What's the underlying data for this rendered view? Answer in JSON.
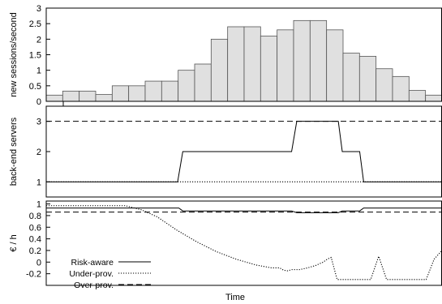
{
  "chart_data": [
    {
      "type": "bar",
      "name": "sessions-panel",
      "ylabel": "new sessions/second",
      "ylim": [
        0,
        3
      ],
      "yticks": [
        0,
        0.5,
        1,
        1.5,
        2,
        2.5,
        3
      ],
      "ytick_labels": [
        "0",
        "0.5",
        "1",
        "1.5",
        "2",
        "2.5",
        "3"
      ],
      "values": [
        0.2,
        0.33,
        0.33,
        0.22,
        0.5,
        0.5,
        0.65,
        0.65,
        1.0,
        1.2,
        2.0,
        2.4,
        2.4,
        2.1,
        2.3,
        2.6,
        2.6,
        2.3,
        1.55,
        1.45,
        1.05,
        0.8,
        0.35,
        0.2
      ],
      "bar_color": "#e0e0e0",
      "grid": false
    },
    {
      "type": "line",
      "name": "servers-panel",
      "ylabel": "back-end servers",
      "ylim": [
        0.5,
        3.5
      ],
      "yticks": [
        1,
        2,
        3
      ],
      "ytick_labels": [
        "1",
        "2",
        "3"
      ],
      "series": [
        {
          "name": "",
          "style": "solid",
          "x": [
            0,
            0.332,
            0.345,
            0.62,
            0.633,
            0.738,
            0.748,
            0.792,
            0.802,
            1.0
          ],
          "y": [
            1,
            1,
            2,
            2,
            3,
            3,
            2,
            2,
            1,
            1
          ]
        },
        {
          "name": "",
          "style": "dotted",
          "x": [
            0,
            1.0
          ],
          "y": [
            1,
            1
          ]
        },
        {
          "name": "",
          "style": "dashed",
          "x": [
            0,
            1.0
          ],
          "y": [
            3,
            3
          ]
        }
      ],
      "grid": false
    },
    {
      "type": "line",
      "name": "cost-panel",
      "ylabel": "€ / h",
      "xlabel": "Time",
      "ylim": [
        -0.4,
        1.05
      ],
      "yticks": [
        -0.2,
        0,
        0.2,
        0.4,
        0.6,
        0.8,
        1
      ],
      "ytick_labels": [
        "-0.2",
        "0",
        "0.2",
        "0.4",
        "0.6",
        "0.8",
        "1"
      ],
      "series": [
        {
          "name": "Risk-aware",
          "style": "solid",
          "x": [
            0,
            0.335,
            0.345,
            0.62,
            0.633,
            0.738,
            0.748,
            0.792,
            0.802,
            1.0
          ],
          "y": [
            0.93,
            0.93,
            0.88,
            0.88,
            0.85,
            0.85,
            0.88,
            0.88,
            0.93,
            0.93
          ]
        },
        {
          "name": "Under-prov.",
          "style": "dotted",
          "x": [
            0,
            0.2,
            0.24,
            0.28,
            0.33,
            0.38,
            0.43,
            0.48,
            0.53,
            0.57,
            0.59,
            0.6,
            0.61,
            0.62,
            0.64,
            0.66,
            0.68,
            0.7,
            0.71,
            0.72,
            0.735,
            0.76,
            0.78,
            0.8,
            0.82,
            0.84,
            0.86,
            0.88,
            0.9,
            0.92,
            0.94,
            0.96,
            0.98,
            1.0
          ],
          "y": [
            0.97,
            0.97,
            0.9,
            0.78,
            0.55,
            0.35,
            0.18,
            0.05,
            -0.05,
            -0.1,
            -0.1,
            -0.14,
            -0.15,
            -0.13,
            -0.13,
            -0.1,
            -0.06,
            0.0,
            0.05,
            0.08,
            -0.3,
            -0.3,
            -0.3,
            -0.3,
            -0.3,
            0.1,
            -0.3,
            -0.3,
            -0.3,
            -0.3,
            -0.3,
            -0.3,
            0.05,
            0.2
          ]
        },
        {
          "name": "Over-prov.",
          "style": "dashed",
          "x": [
            0,
            1.0
          ],
          "y": [
            0.86,
            0.86
          ]
        }
      ],
      "legend_position": "bottom-left",
      "grid": false
    }
  ]
}
